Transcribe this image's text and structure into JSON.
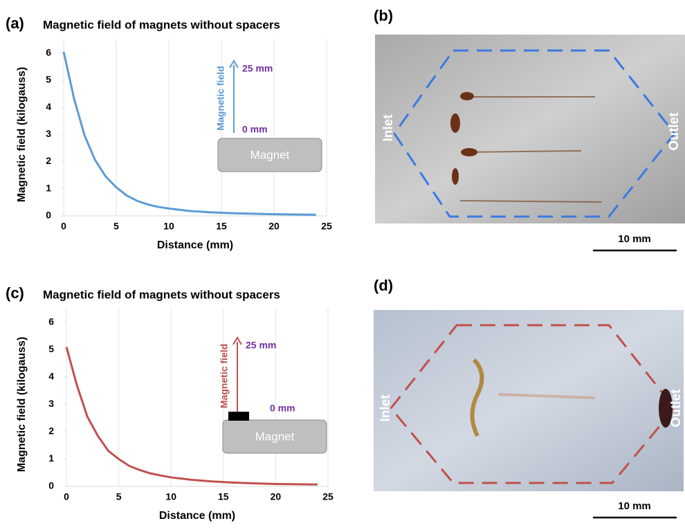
{
  "chart_data": [
    {
      "type": "line",
      "panel": "(a)",
      "title": "Magnetic field of magnets without spacers",
      "xlabel": "Distance (mm)",
      "ylabel": "Magnetic field (kilogauss)",
      "x": [
        0,
        1,
        2,
        3,
        4,
        5,
        6,
        7,
        8,
        9,
        10,
        12,
        14,
        16,
        18,
        20,
        22,
        24
      ],
      "values": [
        6.05,
        4.3,
        2.95,
        2.05,
        1.45,
        1.05,
        0.75,
        0.55,
        0.42,
        0.33,
        0.27,
        0.18,
        0.13,
        0.1,
        0.08,
        0.06,
        0.05,
        0.04
      ],
      "color": "#5b9bd5",
      "xlim": [
        0,
        25
      ],
      "ylim": [
        0,
        6.5
      ],
      "xticks": [
        0,
        5,
        10,
        15,
        20,
        25
      ],
      "yticks": [
        0,
        1,
        2,
        3,
        4,
        5,
        6
      ],
      "grid": true,
      "annotations": {
        "field": "Magnetic field",
        "top": "25 mm",
        "bottom": "0 mm",
        "magnet": "Magnet"
      }
    },
    {
      "type": "line",
      "panel": "(c)",
      "title": "Magnetic field of magnets without spacers",
      "xlabel": "Distance (mm)",
      "ylabel": "Magnetic field (kilogauss)",
      "x": [
        0,
        1,
        2,
        3,
        4,
        5,
        6,
        7,
        8,
        9,
        10,
        12,
        14,
        16,
        18,
        20,
        22,
        24
      ],
      "values": [
        5.1,
        3.7,
        2.55,
        1.85,
        1.3,
        1.0,
        0.75,
        0.6,
        0.48,
        0.4,
        0.33,
        0.24,
        0.18,
        0.14,
        0.11,
        0.09,
        0.08,
        0.07
      ],
      "color": "#c0504d",
      "xlim": [
        0,
        25
      ],
      "ylim": [
        0,
        6.5
      ],
      "xticks": [
        0,
        5,
        10,
        15,
        20,
        25
      ],
      "yticks": [
        0,
        1,
        2,
        3,
        4,
        5,
        6
      ],
      "grid": true,
      "annotations": {
        "field": "Magnetic field",
        "top": "25 mm",
        "bottom": "0 mm",
        "magnet": "Magnet"
      }
    }
  ],
  "photos": [
    {
      "panel": "(b)",
      "inlet": "Inlet",
      "outlet": "Outlet",
      "scale": "10 mm"
    },
    {
      "panel": "(d)",
      "inlet": "Inlet",
      "outlet": "Outlet",
      "scale": "10 mm"
    }
  ]
}
